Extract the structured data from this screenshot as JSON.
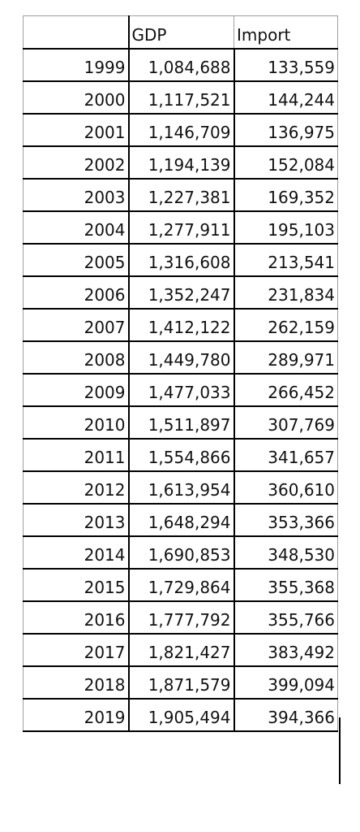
{
  "table": {
    "header": {
      "year": "",
      "gdp": "GDP",
      "import": "Import"
    },
    "rows": [
      {
        "year": "1999",
        "gdp": "1,084,688",
        "import": "133,559"
      },
      {
        "year": "2000",
        "gdp": "1,117,521",
        "import": "144,244"
      },
      {
        "year": "2001",
        "gdp": "1,146,709",
        "import": "136,975"
      },
      {
        "year": "2002",
        "gdp": "1,194,139",
        "import": "152,084"
      },
      {
        "year": "2003",
        "gdp": "1,227,381",
        "import": "169,352"
      },
      {
        "year": "2004",
        "gdp": "1,277,911",
        "import": "195,103"
      },
      {
        "year": "2005",
        "gdp": "1,316,608",
        "import": "213,541"
      },
      {
        "year": "2006",
        "gdp": "1,352,247",
        "import": "231,834"
      },
      {
        "year": "2007",
        "gdp": "1,412,122",
        "import": "262,159"
      },
      {
        "year": "2008",
        "gdp": "1,449,780",
        "import": "289,971"
      },
      {
        "year": "2009",
        "gdp": "1,477,033",
        "import": "266,452"
      },
      {
        "year": "2010",
        "gdp": "1,511,897",
        "import": "307,769"
      },
      {
        "year": "2011",
        "gdp": "1,554,866",
        "import": "341,657"
      },
      {
        "year": "2012",
        "gdp": "1,613,954",
        "import": "360,610"
      },
      {
        "year": "2013",
        "gdp": "1,648,294",
        "import": "353,366"
      },
      {
        "year": "2014",
        "gdp": "1,690,853",
        "import": "348,530"
      },
      {
        "year": "2015",
        "gdp": "1,729,864",
        "import": "355,368"
      },
      {
        "year": "2016",
        "gdp": "1,777,792",
        "import": "355,766"
      },
      {
        "year": "2017",
        "gdp": "1,821,427",
        "import": "383,492"
      },
      {
        "year": "2018",
        "gdp": "1,871,579",
        "import": "399,094"
      },
      {
        "year": "2019",
        "gdp": "1,905,494",
        "import": "394,366"
      }
    ]
  }
}
